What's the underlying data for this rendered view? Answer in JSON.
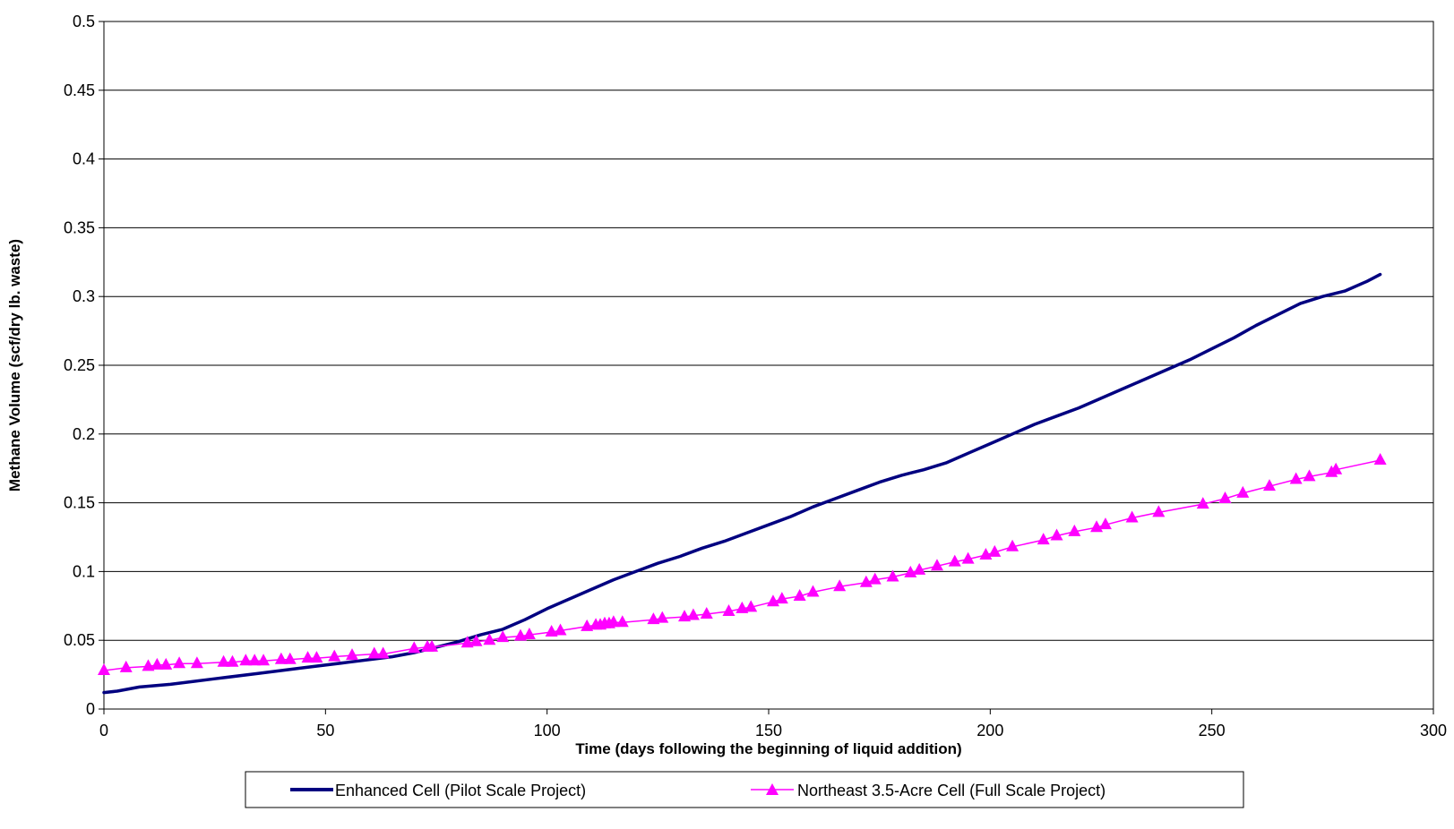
{
  "chart_data": {
    "type": "line",
    "xlabel": "Time (days following the beginning of liquid addition)",
    "ylabel": "Methane Volume (scf/dry lb. waste)",
    "xlim": [
      0,
      300
    ],
    "ylim": [
      0,
      0.5
    ],
    "x_ticks": [
      "0",
      "50",
      "100",
      "150",
      "200",
      "250",
      "300"
    ],
    "y_ticks": [
      "0",
      "0.05",
      "0.1",
      "0.15",
      "0.2",
      "0.25",
      "0.3",
      "0.35",
      "0.4",
      "0.45",
      "0.5"
    ],
    "grid": "horizontal",
    "legend_position": "bottom",
    "series": [
      {
        "name": "Enhanced Cell (Pilot Scale Project)",
        "color": "#000080",
        "marker": "none",
        "x": [
          0,
          3,
          8,
          15,
          25,
          35,
          45,
          55,
          65,
          70,
          75,
          80,
          85,
          90,
          95,
          100,
          105,
          110,
          115,
          120,
          125,
          130,
          135,
          140,
          145,
          150,
          155,
          160,
          165,
          170,
          175,
          180,
          185,
          190,
          195,
          200,
          205,
          210,
          215,
          220,
          225,
          230,
          235,
          240,
          245,
          250,
          255,
          260,
          265,
          270,
          275,
          280,
          285,
          288
        ],
        "y": [
          0.012,
          0.013,
          0.016,
          0.018,
          0.022,
          0.026,
          0.03,
          0.034,
          0.038,
          0.041,
          0.045,
          0.049,
          0.054,
          0.058,
          0.065,
          0.073,
          0.08,
          0.087,
          0.094,
          0.1,
          0.106,
          0.111,
          0.117,
          0.122,
          0.128,
          0.134,
          0.14,
          0.147,
          0.153,
          0.159,
          0.165,
          0.17,
          0.174,
          0.179,
          0.186,
          0.193,
          0.2,
          0.207,
          0.213,
          0.219,
          0.226,
          0.233,
          0.24,
          0.247,
          0.254,
          0.262,
          0.27,
          0.279,
          0.287,
          0.295,
          0.3,
          0.304,
          0.311,
          0.316
        ]
      },
      {
        "name": "Northeast 3.5-Acre Cell (Full Scale Project)",
        "color": "#ff00ff",
        "marker": "triangle",
        "x": [
          0,
          5,
          10,
          12,
          14,
          17,
          21,
          27,
          29,
          32,
          34,
          36,
          40,
          42,
          46,
          48,
          52,
          56,
          61,
          63,
          70,
          73,
          74,
          82,
          84,
          87,
          90,
          94,
          96,
          101,
          103,
          109,
          111,
          112,
          113,
          114,
          115,
          117,
          124,
          126,
          131,
          133,
          136,
          141,
          144,
          146,
          151,
          153,
          157,
          160,
          166,
          172,
          174,
          178,
          182,
          184,
          188,
          192,
          195,
          199,
          201,
          205,
          212,
          215,
          219,
          224,
          226,
          232,
          238,
          248,
          253,
          257,
          263,
          269,
          272,
          277,
          278,
          288
        ],
        "y": [
          0.028,
          0.03,
          0.031,
          0.032,
          0.032,
          0.033,
          0.033,
          0.034,
          0.034,
          0.035,
          0.035,
          0.035,
          0.036,
          0.036,
          0.037,
          0.037,
          0.038,
          0.039,
          0.04,
          0.04,
          0.044,
          0.045,
          0.045,
          0.048,
          0.049,
          0.05,
          0.052,
          0.053,
          0.054,
          0.056,
          0.057,
          0.06,
          0.061,
          0.061,
          0.062,
          0.062,
          0.063,
          0.063,
          0.065,
          0.066,
          0.067,
          0.068,
          0.069,
          0.071,
          0.073,
          0.074,
          0.078,
          0.08,
          0.082,
          0.085,
          0.089,
          0.092,
          0.094,
          0.096,
          0.099,
          0.101,
          0.104,
          0.107,
          0.109,
          0.112,
          0.114,
          0.118,
          0.123,
          0.126,
          0.129,
          0.132,
          0.134,
          0.139,
          0.143,
          0.149,
          0.153,
          0.157,
          0.162,
          0.167,
          0.169,
          0.172,
          0.174,
          0.181
        ]
      }
    ]
  }
}
